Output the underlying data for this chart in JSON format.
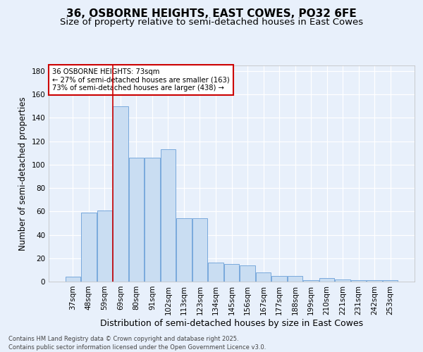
{
  "title_line1": "36, OSBORNE HEIGHTS, EAST COWES, PO32 6FE",
  "title_line2": "Size of property relative to semi-detached houses in East Cowes",
  "xlabel": "Distribution of semi-detached houses by size in East Cowes",
  "ylabel": "Number of semi-detached properties",
  "categories": [
    "37sqm",
    "48sqm",
    "59sqm",
    "69sqm",
    "80sqm",
    "91sqm",
    "102sqm",
    "113sqm",
    "123sqm",
    "134sqm",
    "145sqm",
    "156sqm",
    "167sqm",
    "177sqm",
    "188sqm",
    "199sqm",
    "210sqm",
    "221sqm",
    "231sqm",
    "242sqm",
    "253sqm"
  ],
  "bar_values": [
    4,
    59,
    61,
    150,
    106,
    106,
    113,
    54,
    54,
    16,
    15,
    14,
    8,
    5,
    5,
    1,
    3,
    2,
    1,
    1,
    1
  ],
  "highlight_index": 3,
  "bar_color": "#c9ddf2",
  "bar_edge_color": "#6a9fd8",
  "highlight_line_color": "#cc0000",
  "ylim": [
    0,
    185
  ],
  "yticks": [
    0,
    20,
    40,
    60,
    80,
    100,
    120,
    140,
    160,
    180
  ],
  "annotation_text": "36 OSBORNE HEIGHTS: 73sqm\n← 27% of semi-detached houses are smaller (163)\n73% of semi-detached houses are larger (438) →",
  "annotation_box_color": "#ffffff",
  "annotation_box_edge": "#cc0000",
  "footer_text": "Contains HM Land Registry data © Crown copyright and database right 2025.\nContains public sector information licensed under the Open Government Licence v3.0.",
  "bg_color": "#e8f0fb",
  "plot_bg_color": "#e8f0fb",
  "grid_color": "#ffffff",
  "title_fontsize": 11,
  "subtitle_fontsize": 9.5,
  "tick_fontsize": 7.5,
  "label_fontsize": 9,
  "ylabel_fontsize": 8.5
}
